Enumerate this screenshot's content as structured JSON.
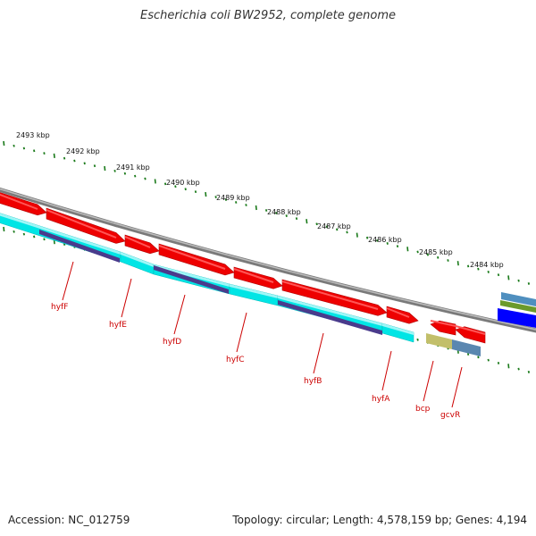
{
  "title": "Escherichia coli BW2952, complete genome",
  "footer": {
    "accession": "Accession: NC_012759",
    "stats": "Topology: circular; Length: 4,578,159 bp; Genes: 4,194"
  },
  "ticks": [
    "2493 kbp",
    "2492 kbp",
    "2491 kbp",
    "2490 kbp",
    "2489 kbp",
    "2488 kbp",
    "2487 kbp",
    "2486 kbp",
    "2485 kbp",
    "2484 kbp"
  ],
  "genes": [
    "hyfF",
    "hyfE",
    "hyfD",
    "hyfC",
    "hyfB",
    "hyfA",
    "bcp",
    "gcvR"
  ],
  "colors": {
    "cds": "#ee0000",
    "cds_highlight": "#ff5555",
    "feature_cyan": "#00e5e5",
    "feature_purple": "#4a3b8c",
    "backbone": "#888888",
    "tick": "#1a7a1a",
    "label": "#cc0000",
    "bcp_feature": "#c2bf6a",
    "gcvR_feature": "#5a87b0",
    "right_blue": "#0000ff",
    "right_green": "#6b9a2a",
    "right_steel": "#4f8fbf"
  }
}
